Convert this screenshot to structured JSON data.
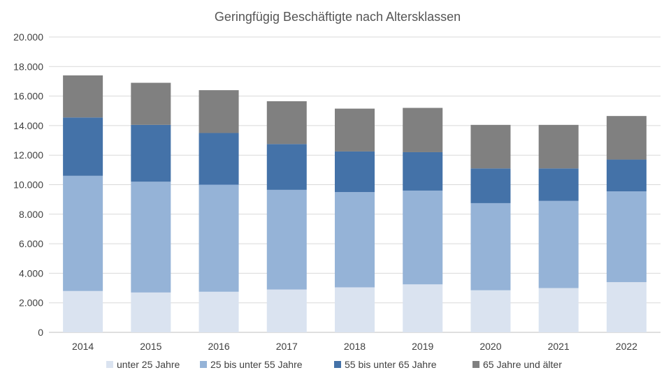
{
  "chart_data": {
    "type": "bar",
    "stacked": true,
    "title": "Geringfügig Beschäftigte nach Altersklassen",
    "categories": [
      "2014",
      "2015",
      "2016",
      "2017",
      "2018",
      "2019",
      "2020",
      "2021",
      "2022"
    ],
    "series": [
      {
        "name": "unter 25 Jahre",
        "color": "#dae3f0",
        "values": [
          2800,
          2700,
          2750,
          2900,
          3050,
          3250,
          2850,
          3000,
          3400
        ]
      },
      {
        "name": "25 bis unter 55 Jahre",
        "color": "#95b3d7",
        "values": [
          7800,
          7500,
          7250,
          6750,
          6450,
          6350,
          5900,
          5900,
          6150
        ]
      },
      {
        "name": "55 bis unter 65 Jahre",
        "color": "#4472a8",
        "values": [
          3950,
          3850,
          3500,
          3100,
          2750,
          2600,
          2350,
          2200,
          2150
        ]
      },
      {
        "name": "65 Jahre und älter",
        "color": "#808080",
        "values": [
          2850,
          2850,
          2900,
          2900,
          2900,
          3000,
          2950,
          2950,
          2950
        ]
      }
    ],
    "ylim": [
      0,
      20000
    ],
    "yticks": [
      "0",
      "2.000",
      "4.000",
      "6.000",
      "8.000",
      "10.000",
      "12.000",
      "14.000",
      "16.000",
      "18.000",
      "20.000"
    ],
    "grid": true,
    "legend_position": "bottom"
  }
}
